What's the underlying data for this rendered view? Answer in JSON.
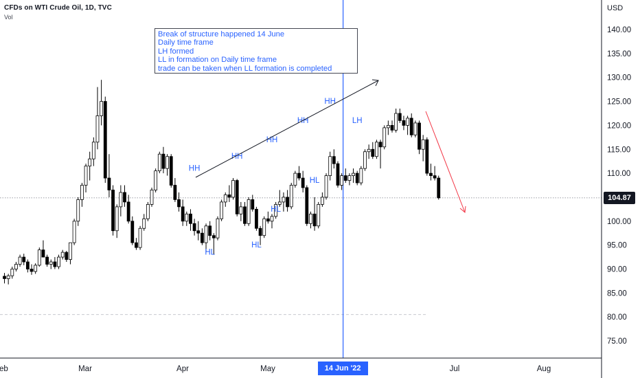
{
  "header": {
    "title": "CFDs on WTI Crude Oil, 1D, TVC",
    "volume_label": "Vol",
    "currency": "USD"
  },
  "note_lines": [
    "Break of structure happened 14 June",
    "Daily time frame",
    "LH formed",
    "LL in formation on Daily time frame",
    "trade can be taken when LL formation is completed"
  ],
  "colors": {
    "up_candle": "#ffffff",
    "down_candle": "#000000",
    "label": "#2962ff",
    "vertical_line": "#2962ff",
    "up_arrow": "#131722",
    "down_arrow": "#f23645"
  },
  "current_price": "104.87",
  "highlight_date": "14 Jun '22",
  "chart_data": {
    "type": "candlestick",
    "title": "CFDs on WTI Crude Oil, 1D, TVC",
    "ylabel": "USD",
    "ylim": [
      71,
      149
    ],
    "yticks": [
      "140.00",
      "135.00",
      "130.00",
      "125.00",
      "120.00",
      "115.00",
      "110.00",
      "105.00",
      "100.00",
      "95.00",
      "90.00",
      "85.00",
      "80.00",
      "75.00"
    ],
    "xticks": [
      "Feb",
      "Mar",
      "Apr",
      "May",
      "Jun",
      "Jul",
      "Aug"
    ],
    "ohlc": [
      [
        88.5,
        89.2,
        87.0,
        88.0
      ],
      [
        88.0,
        89.0,
        86.8,
        88.6
      ],
      [
        88.6,
        90.5,
        88.0,
        90.0
      ],
      [
        90.0,
        91.5,
        89.5,
        91.0
      ],
      [
        91.0,
        93.0,
        90.5,
        92.5
      ],
      [
        92.5,
        93.2,
        90.8,
        91.5
      ],
      [
        91.5,
        92.0,
        89.3,
        90.0
      ],
      [
        90.0,
        91.0,
        88.8,
        89.5
      ],
      [
        89.5,
        91.2,
        89.0,
        90.8
      ],
      [
        90.8,
        94.5,
        90.5,
        94.0
      ],
      [
        94.0,
        96.0,
        93.0,
        92.5
      ],
      [
        92.5,
        93.0,
        90.5,
        91.0
      ],
      [
        91.0,
        92.0,
        90.0,
        91.5
      ],
      [
        91.5,
        92.5,
        90.0,
        90.5
      ],
      [
        90.5,
        93.0,
        90.0,
        92.5
      ],
      [
        92.5,
        94.0,
        92.0,
        93.5
      ],
      [
        93.5,
        93.8,
        91.5,
        92.0
      ],
      [
        92.0,
        95.0,
        91.0,
        95.5
      ],
      [
        95.5,
        100.5,
        95.0,
        100.0
      ],
      [
        100.0,
        105.0,
        99.0,
        104.5
      ],
      [
        104.5,
        108.0,
        103.0,
        107.5
      ],
      [
        107.5,
        112.0,
        106.0,
        111.5
      ],
      [
        111.5,
        114.5,
        108.5,
        113.0
      ],
      [
        113.0,
        117.5,
        111.5,
        116.5
      ],
      [
        116.5,
        128.0,
        115.0,
        122.0
      ],
      [
        122.0,
        129.5,
        120.0,
        125.0
      ],
      [
        125.0,
        126.0,
        108.0,
        109.0
      ],
      [
        109.0,
        114.0,
        105.0,
        106.5
      ],
      [
        106.5,
        107.5,
        97.0,
        98.0
      ],
      [
        98.0,
        103.5,
        96.5,
        103.0
      ],
      [
        103.0,
        107.5,
        101.0,
        106.0
      ],
      [
        106.0,
        107.5,
        103.0,
        104.0
      ],
      [
        104.0,
        105.5,
        99.5,
        100.0
      ],
      [
        100.0,
        101.0,
        95.0,
        95.5
      ],
      [
        95.5,
        96.5,
        94.0,
        94.5
      ],
      [
        94.5,
        99.0,
        94.0,
        98.5
      ],
      [
        98.5,
        101.5,
        98.0,
        100.5
      ],
      [
        100.5,
        104.0,
        100.0,
        103.5
      ],
      [
        103.5,
        107.0,
        103.0,
        106.5
      ],
      [
        106.5,
        111.0,
        106.0,
        110.5
      ],
      [
        110.5,
        114.5,
        110.0,
        114.0
      ],
      [
        114.0,
        115.5,
        110.0,
        111.0
      ],
      [
        111.0,
        114.0,
        109.5,
        113.5
      ],
      [
        113.5,
        114.0,
        107.0,
        107.5
      ],
      [
        107.5,
        109.0,
        104.0,
        104.5
      ],
      [
        104.5,
        106.0,
        102.0,
        103.0
      ],
      [
        103.0,
        104.5,
        99.0,
        100.0
      ],
      [
        100.0,
        102.0,
        99.0,
        101.5
      ],
      [
        101.5,
        102.5,
        98.0,
        99.5
      ],
      [
        99.5,
        100.5,
        97.0,
        98.0
      ],
      [
        98.0,
        100.0,
        96.0,
        97.5
      ],
      [
        97.5,
        98.5,
        95.0,
        95.5
      ],
      [
        95.5,
        99.5,
        93.5,
        99.0
      ],
      [
        99.0,
        100.0,
        96.0,
        97.0
      ],
      [
        97.0,
        97.5,
        93.0,
        96.5
      ],
      [
        96.5,
        101.0,
        96.0,
        100.5
      ],
      [
        100.5,
        104.5,
        100.0,
        104.0
      ],
      [
        104.0,
        106.0,
        103.0,
        105.5
      ],
      [
        105.5,
        107.5,
        104.0,
        105.0
      ],
      [
        105.0,
        109.0,
        104.5,
        108.5
      ],
      [
        108.5,
        108.8,
        101.0,
        101.5
      ],
      [
        101.5,
        104.0,
        100.0,
        103.0
      ],
      [
        103.0,
        104.0,
        99.0,
        99.5
      ],
      [
        99.5,
        105.0,
        99.0,
        104.5
      ],
      [
        104.5,
        105.5,
        102.0,
        102.5
      ],
      [
        102.5,
        103.0,
        98.0,
        98.5
      ],
      [
        98.5,
        99.0,
        95.0,
        97.0
      ],
      [
        97.0,
        101.0,
        96.5,
        100.5
      ],
      [
        100.5,
        102.0,
        99.5,
        100.0
      ],
      [
        100.0,
        101.5,
        98.5,
        101.0
      ],
      [
        101.0,
        104.0,
        100.5,
        103.5
      ],
      [
        103.5,
        106.5,
        103.0,
        104.0
      ],
      [
        104.0,
        106.0,
        102.0,
        105.0
      ],
      [
        105.0,
        106.5,
        102.0,
        103.0
      ],
      [
        103.0,
        108.0,
        102.5,
        107.5
      ],
      [
        107.5,
        110.5,
        107.0,
        110.0
      ],
      [
        110.0,
        111.5,
        108.5,
        109.0
      ],
      [
        109.0,
        110.5,
        106.0,
        107.0
      ],
      [
        107.0,
        107.5,
        99.0,
        99.5
      ],
      [
        99.5,
        102.0,
        98.5,
        101.5
      ],
      [
        101.5,
        105.0,
        98.0,
        99.0
      ],
      [
        99.0,
        104.0,
        98.5,
        103.5
      ],
      [
        103.5,
        106.0,
        103.0,
        105.0
      ],
      [
        105.0,
        110.0,
        104.5,
        109.5
      ],
      [
        109.5,
        114.5,
        108.5,
        113.5
      ],
      [
        113.5,
        115.0,
        111.0,
        112.0
      ],
      [
        112.0,
        112.5,
        107.0,
        107.5
      ],
      [
        107.5,
        110.0,
        106.5,
        109.5
      ],
      [
        109.5,
        111.0,
        108.0,
        108.5
      ],
      [
        108.5,
        110.0,
        107.5,
        109.5
      ],
      [
        109.5,
        111.0,
        108.0,
        110.0
      ],
      [
        110.0,
        110.5,
        107.5,
        108.0
      ],
      [
        108.0,
        111.5,
        107.5,
        111.0
      ],
      [
        111.0,
        115.0,
        110.5,
        114.5
      ],
      [
        114.5,
        116.0,
        113.0,
        115.0
      ],
      [
        115.0,
        116.5,
        113.0,
        113.5
      ],
      [
        113.5,
        117.0,
        113.0,
        116.5
      ],
      [
        116.5,
        117.0,
        111.0,
        115.5
      ],
      [
        115.5,
        120.0,
        115.0,
        119.5
      ],
      [
        119.5,
        121.0,
        118.0,
        120.0
      ],
      [
        120.0,
        121.0,
        118.5,
        119.0
      ],
      [
        119.0,
        123.5,
        118.5,
        122.5
      ],
      [
        122.5,
        123.5,
        120.5,
        121.0
      ],
      [
        121.0,
        122.0,
        119.0,
        120.0
      ],
      [
        120.0,
        122.0,
        118.0,
        121.5
      ],
      [
        121.5,
        122.5,
        117.5,
        118.0
      ],
      [
        118.0,
        121.0,
        117.5,
        120.5
      ],
      [
        120.5,
        121.0,
        114.0,
        115.0
      ],
      [
        115.0,
        118.0,
        112.5,
        117.0
      ],
      [
        117.0,
        117.5,
        109.5,
        110.0
      ],
      [
        110.0,
        112.0,
        108.5,
        109.5
      ],
      [
        109.5,
        111.5,
        108.5,
        109.0
      ],
      [
        109.0,
        109.5,
        104.5,
        104.87
      ]
    ],
    "annotations": [
      {
        "text": "HH",
        "x": 49,
        "y": 110.5
      },
      {
        "text": "HL",
        "x": 53,
        "y": 93.0
      },
      {
        "text": "HH",
        "x": 60,
        "y": 113.0
      },
      {
        "text": "HL",
        "x": 65,
        "y": 94.5
      },
      {
        "text": "HH",
        "x": 69,
        "y": 116.5
      },
      {
        "text": "HL",
        "x": 70,
        "y": 102.0
      },
      {
        "text": "HH",
        "x": 77,
        "y": 120.5
      },
      {
        "text": "HL",
        "x": 80,
        "y": 108.0
      },
      {
        "text": "HH",
        "x": 84,
        "y": 124.5
      },
      {
        "text": "LH",
        "x": 91,
        "y": 120.5
      }
    ],
    "vertical_line_at": 87,
    "horizontal_line_price": 104.87,
    "dotted_line_price": 80.5
  }
}
